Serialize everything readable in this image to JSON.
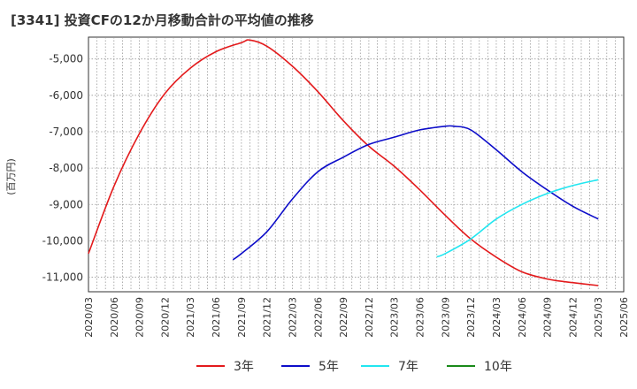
{
  "chart_data": {
    "type": "line",
    "title": "[3341]  投資CFの12か月移動合計の平均値の推移",
    "ylabel": "(百万円)",
    "xlabel": "",
    "ylim": [
      -11400,
      -4400
    ],
    "xlim": [
      "2020/03",
      "2025/06"
    ],
    "grid": true,
    "legend_position": "bottom",
    "y_ticks": [
      -5000,
      -6000,
      -7000,
      -8000,
      -9000,
      -10000,
      -11000
    ],
    "y_tick_labels": [
      "-5,000",
      "-6,000",
      "-7,000",
      "-8,000",
      "-9,000",
      "-10,000",
      "-11,000"
    ],
    "x_tick_labels": [
      "2020/03",
      "2020/06",
      "2020/09",
      "2020/12",
      "2021/03",
      "2021/06",
      "2021/09",
      "2021/12",
      "2022/03",
      "2022/06",
      "2022/09",
      "2022/12",
      "2023/03",
      "2023/06",
      "2023/09",
      "2023/12",
      "2024/03",
      "2024/06",
      "2024/09",
      "2024/12",
      "2025/03",
      "2025/06"
    ],
    "series": [
      {
        "name": "3年",
        "color": "#e31a1c",
        "points": [
          [
            "2020/03",
            -10350
          ],
          [
            "2020/06",
            -8500
          ],
          [
            "2020/09",
            -7050
          ],
          [
            "2020/12",
            -5950
          ],
          [
            "2021/03",
            -5250
          ],
          [
            "2021/06",
            -4800
          ],
          [
            "2021/09",
            -4550
          ],
          [
            "2021/10",
            -4480
          ],
          [
            "2021/12",
            -4650
          ],
          [
            "2022/03",
            -5200
          ],
          [
            "2022/06",
            -5900
          ],
          [
            "2022/09",
            -6700
          ],
          [
            "2022/12",
            -7400
          ],
          [
            "2023/03",
            -7950
          ],
          [
            "2023/06",
            -8600
          ],
          [
            "2023/09",
            -9300
          ],
          [
            "2023/12",
            -9950
          ],
          [
            "2024/03",
            -10450
          ],
          [
            "2024/06",
            -10850
          ],
          [
            "2024/09",
            -11050
          ],
          [
            "2024/12",
            -11150
          ],
          [
            "2025/03",
            -11230
          ]
        ]
      },
      {
        "name": "5年",
        "color": "#0d0dc9",
        "points": [
          [
            "2021/08",
            -10520
          ],
          [
            "2021/09",
            -10350
          ],
          [
            "2021/12",
            -9750
          ],
          [
            "2022/03",
            -8850
          ],
          [
            "2022/06",
            -8100
          ],
          [
            "2022/09",
            -7700
          ],
          [
            "2022/12",
            -7350
          ],
          [
            "2023/03",
            -7150
          ],
          [
            "2023/06",
            -6950
          ],
          [
            "2023/09",
            -6850
          ],
          [
            "2023/10",
            -6850
          ],
          [
            "2023/12",
            -6950
          ],
          [
            "2024/03",
            -7500
          ],
          [
            "2024/06",
            -8100
          ],
          [
            "2024/09",
            -8600
          ],
          [
            "2024/12",
            -9050
          ],
          [
            "2025/03",
            -9400
          ]
        ]
      },
      {
        "name": "7年",
        "color": "#22e6f0",
        "points": [
          [
            "2023/08",
            -10440
          ],
          [
            "2023/09",
            -10350
          ],
          [
            "2023/12",
            -9950
          ],
          [
            "2024/03",
            -9400
          ],
          [
            "2024/06",
            -9000
          ],
          [
            "2024/09",
            -8700
          ],
          [
            "2024/12",
            -8480
          ],
          [
            "2025/03",
            -8320
          ]
        ]
      },
      {
        "name": "10年",
        "color": "#1a8a1a",
        "points": []
      }
    ]
  }
}
